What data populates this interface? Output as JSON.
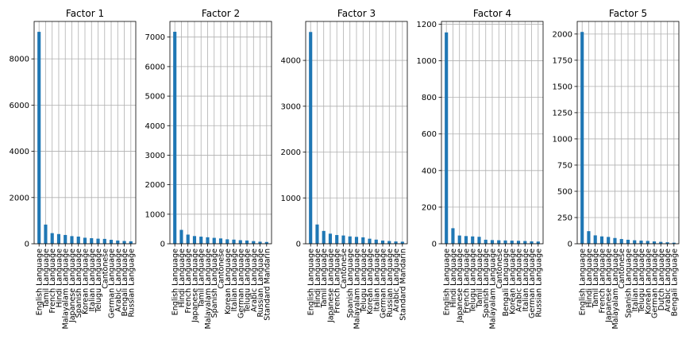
{
  "style": {
    "bar_color": "#1f77b4",
    "grid_color": "#b0b0b0",
    "axis_color": "#000000"
  },
  "chart_data": [
    {
      "type": "bar",
      "title": "Factor 1",
      "grid": true,
      "ylim": [
        0,
        9620
      ],
      "yticks": [
        0,
        2000,
        4000,
        6000,
        8000
      ],
      "categories": [
        "English Language",
        "Tamil Language",
        "French Language",
        "Hindi Language",
        "Malayalam Language",
        "Japanese Language",
        "Spanish Language",
        "Korean Language",
        "Italian Language",
        "Telugu Language",
        "Cantonese",
        "German Language",
        "Arabic Language",
        "Bengali Language",
        "Russian Language"
      ],
      "values": [
        9170,
        830,
        460,
        420,
        380,
        330,
        310,
        260,
        240,
        220,
        210,
        170,
        140,
        120,
        105
      ]
    },
    {
      "type": "bar",
      "title": "Factor 2",
      "grid": true,
      "ylim": [
        0,
        7530
      ],
      "yticks": [
        0,
        1000,
        2000,
        3000,
        4000,
        5000,
        6000,
        7000
      ],
      "categories": [
        "English Language",
        "Hindi Language",
        "French Language",
        "Japanese Language",
        "Tamil Language",
        "Malayalam Language",
        "Spanish Language",
        "Cantonese",
        "Korean Language",
        "Italian Language",
        "German Language",
        "Telugu Language",
        "Arabic Language",
        "Russian Language",
        "Standard Mandarin"
      ],
      "values": [
        7180,
        470,
        310,
        260,
        240,
        220,
        200,
        180,
        150,
        140,
        120,
        110,
        90,
        70,
        60
      ]
    },
    {
      "type": "bar",
      "title": "Factor 3",
      "grid": true,
      "ylim": [
        0,
        4850
      ],
      "yticks": [
        0,
        1000,
        2000,
        3000,
        4000
      ],
      "categories": [
        "English Language",
        "Hindi Language",
        "Tamil Language",
        "Japanese Language",
        "French Language",
        "Cantonese",
        "Spanish Language",
        "Malayalam Language",
        "Telugu Language",
        "Korean Language",
        "Italian Language",
        "German Language",
        "Russian Language",
        "Arabic Language",
        "Standard Mandarin"
      ],
      "values": [
        4620,
        420,
        280,
        220,
        190,
        180,
        160,
        150,
        140,
        110,
        90,
        70,
        60,
        50,
        45
      ]
    },
    {
      "type": "bar",
      "title": "Factor 4",
      "grid": true,
      "ylim": [
        0,
        1215
      ],
      "yticks": [
        0,
        200,
        400,
        600,
        800,
        1000,
        1200
      ],
      "categories": [
        "English Language",
        "Hindi Language",
        "Japanese Language",
        "French Language",
        "Telugu Language",
        "Tamil Language",
        "Spanish Language",
        "Malayalam Language",
        "Cantonese",
        "Bengali Language",
        "Korean Language",
        "Arabic Language",
        "Italian Language",
        "German Language",
        "Russian Language"
      ],
      "values": [
        1155,
        85,
        45,
        42,
        40,
        38,
        22,
        20,
        19,
        18,
        17,
        16,
        15,
        13,
        12
      ]
    },
    {
      "type": "bar",
      "title": "Factor 5",
      "grid": true,
      "ylim": [
        0,
        2120
      ],
      "yticks": [
        0,
        250,
        500,
        750,
        1000,
        1250,
        1500,
        1750,
        2000
      ],
      "categories": [
        "English Language",
        "Hindi Language",
        "Tamil Language",
        "French Language",
        "Japanese Language",
        "Malayalam Language",
        "Cantonese",
        "Spanish Language",
        "Italian Language",
        "Telugu Language",
        "Korean Language",
        "German Language",
        "Dutch Language",
        "Arabic Language",
        "Bengali Language"
      ],
      "values": [
        2020,
        120,
        80,
        70,
        65,
        55,
        45,
        38,
        33,
        30,
        27,
        22,
        18,
        14,
        10
      ]
    }
  ]
}
